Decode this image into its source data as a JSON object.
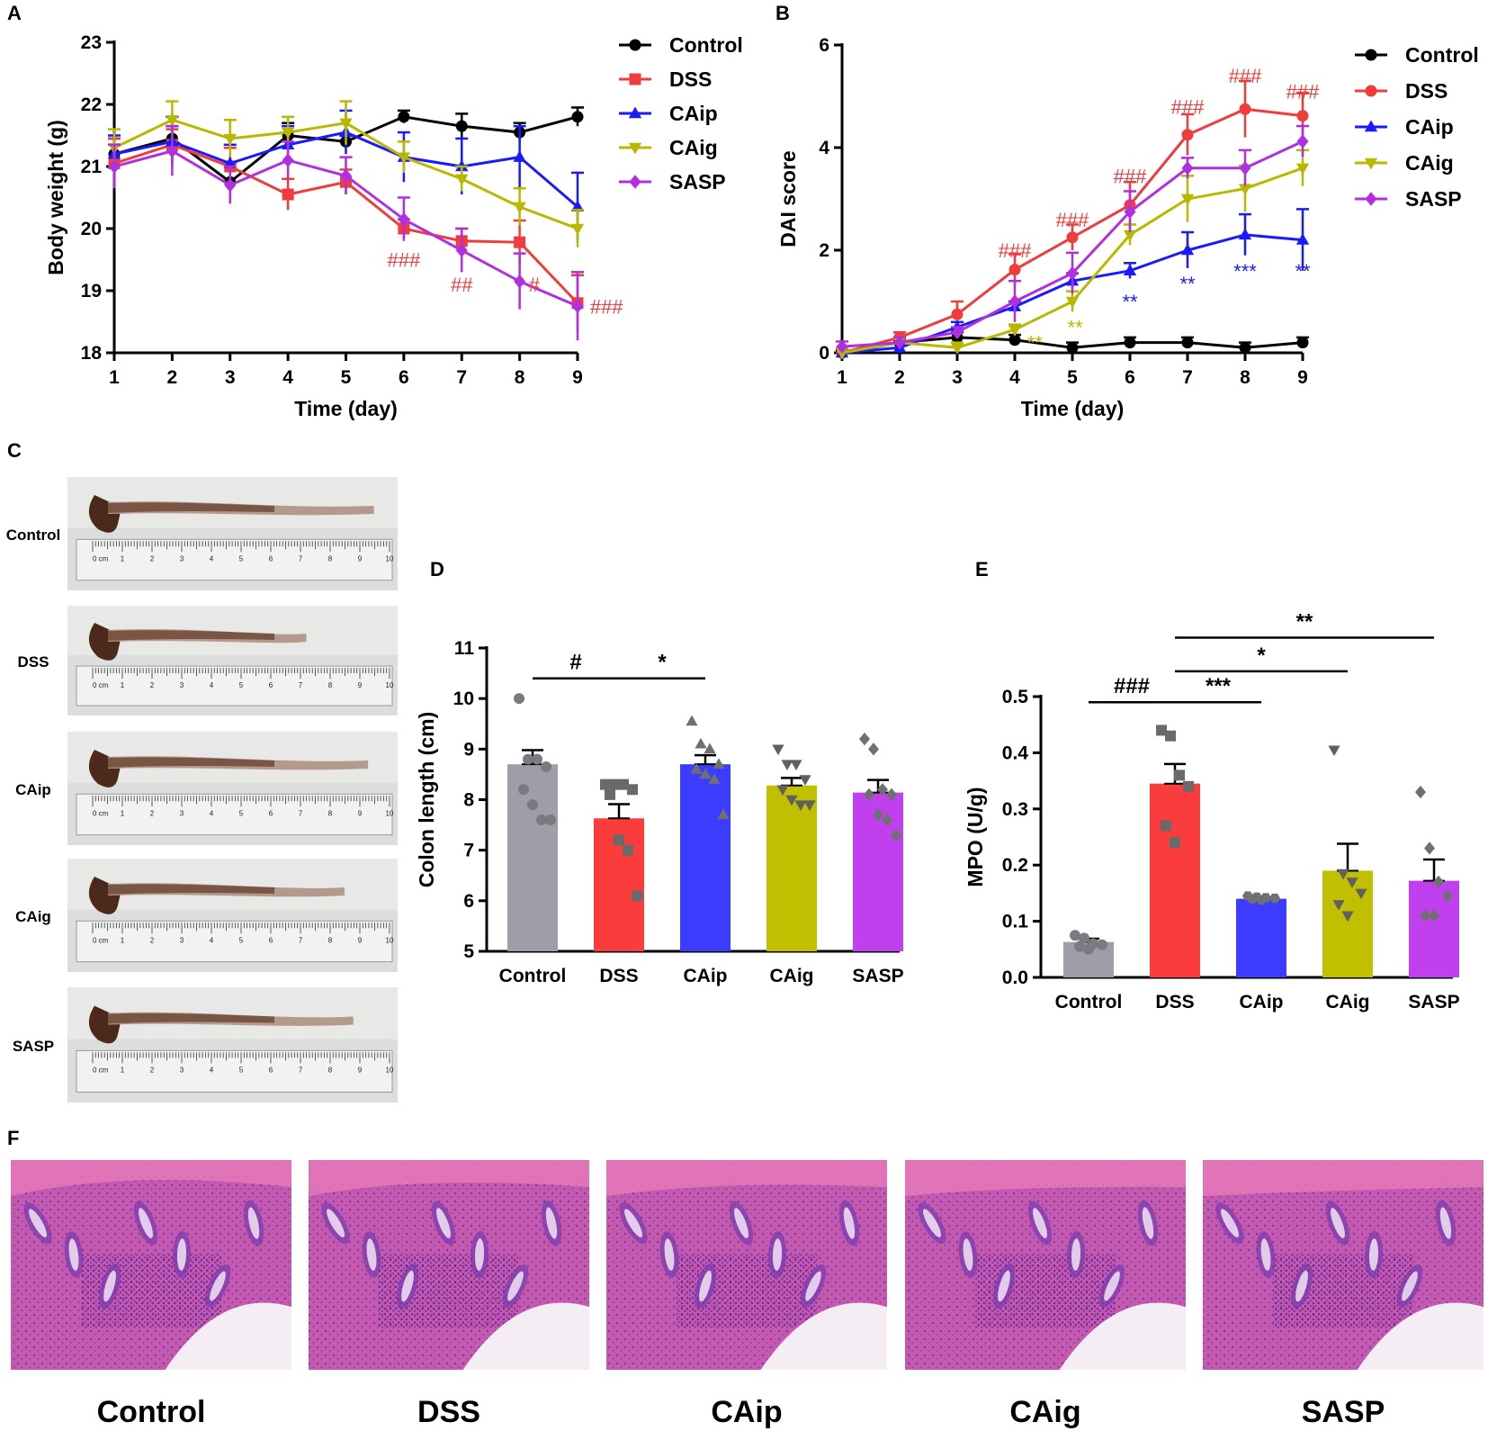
{
  "colors": {
    "Control": "#000000",
    "DSS": "#f03c3c",
    "CAip": "#1a1aff",
    "CAig": "#b8b800",
    "SASP": "#b030e0",
    "bar_Control": "#9e9ea8",
    "bar_DSS": "#fa3c3c",
    "bar_CAip": "#3c3cff",
    "bar_CAig": "#c0c000",
    "bar_SASP": "#c040f0",
    "pt_Control": "#7a7a80",
    "pt_DSS": "#6a6a6a",
    "pt_CAip": "#707070",
    "pt_CAig": "#606060",
    "pt_SASP": "#707070",
    "sig_red": "#f03c3c",
    "sig_blue": "#1a1aff",
    "sig_olive": "#b8b800"
  },
  "panels": {
    "A": "A",
    "B": "B",
    "C": "C",
    "D": "D",
    "E": "E",
    "F": "F"
  },
  "groups": [
    "Control",
    "DSS",
    "CAip",
    "CAig",
    "SASP"
  ],
  "chart_data": [
    {
      "id": "A",
      "type": "line",
      "xlabel": "Time (day)",
      "ylabel": "Body weight (g)",
      "x": [
        1,
        2,
        3,
        4,
        5,
        6,
        7,
        8,
        9
      ],
      "ylim": [
        18,
        23
      ],
      "yticks": [
        18,
        19,
        20,
        21,
        22,
        23
      ],
      "legend": [
        "Control",
        "DSS",
        "CAip",
        "CAig",
        "SASP"
      ],
      "series": [
        {
          "name": "Control",
          "marker": "circle",
          "values": [
            21.2,
            21.45,
            20.75,
            21.5,
            21.4,
            21.8,
            21.65,
            21.55,
            21.8
          ],
          "err": [
            0.25,
            0.2,
            0.3,
            0.2,
            0.1,
            0.1,
            0.2,
            0.15,
            0.15
          ]
        },
        {
          "name": "DSS",
          "marker": "square",
          "values": [
            21.05,
            21.35,
            21.0,
            20.55,
            20.75,
            20.0,
            19.8,
            19.78,
            18.8
          ],
          "err": [
            0.4,
            0.25,
            0.3,
            0.25,
            0.2,
            0.15,
            0.2,
            0.35,
            0.45
          ]
        },
        {
          "name": "CAip",
          "marker": "triangle-up",
          "values": [
            21.2,
            21.4,
            21.05,
            21.35,
            21.55,
            21.15,
            21.0,
            21.15,
            20.35
          ],
          "err": [
            0.3,
            0.4,
            0.3,
            0.3,
            0.35,
            0.4,
            0.45,
            0.5,
            0.55
          ]
        },
        {
          "name": "CAig",
          "marker": "triangle-down",
          "values": [
            21.3,
            21.75,
            21.45,
            21.55,
            21.7,
            21.15,
            20.8,
            20.35,
            20.0
          ],
          "err": [
            0.3,
            0.3,
            0.3,
            0.25,
            0.35,
            0.25,
            0.2,
            0.3,
            0.3
          ]
        },
        {
          "name": "SASP",
          "marker": "diamond",
          "values": [
            21.0,
            21.25,
            20.7,
            21.1,
            20.85,
            20.15,
            19.65,
            19.15,
            18.75
          ],
          "err": [
            0.35,
            0.4,
            0.3,
            0.3,
            0.3,
            0.35,
            0.35,
            0.45,
            0.55
          ]
        }
      ],
      "annotations": [
        {
          "text": "###",
          "x": 6,
          "y": 19.5,
          "color": "red"
        },
        {
          "text": "##",
          "x": 7,
          "y": 19.1,
          "color": "red"
        },
        {
          "text": "#",
          "x": 8.25,
          "y": 19.1,
          "color": "red"
        },
        {
          "text": "###",
          "x": 9.5,
          "y": 18.75,
          "color": "red"
        }
      ]
    },
    {
      "id": "B",
      "type": "line",
      "xlabel": "Time (day)",
      "ylabel": "DAI score",
      "x": [
        1,
        2,
        3,
        4,
        5,
        6,
        7,
        8,
        9
      ],
      "ylim": [
        0,
        6
      ],
      "yticks": [
        0,
        2,
        4,
        6
      ],
      "legend": [
        "Control",
        "DSS",
        "CAip",
        "CAig",
        "SASP"
      ],
      "series": [
        {
          "name": "Control",
          "marker": "circle",
          "values": [
            0.0,
            0.2,
            0.3,
            0.25,
            0.1,
            0.2,
            0.2,
            0.1,
            0.2
          ],
          "err": [
            0.05,
            0.05,
            0.1,
            0.1,
            0.1,
            0.1,
            0.1,
            0.1,
            0.1
          ]
        },
        {
          "name": "DSS",
          "marker": "circle",
          "values": [
            0.0,
            0.3,
            0.75,
            1.62,
            2.25,
            2.88,
            4.25,
            4.75,
            4.62
          ],
          "err": [
            0.1,
            0.1,
            0.25,
            0.3,
            0.25,
            0.45,
            0.4,
            0.55,
            0.45
          ]
        },
        {
          "name": "CAip",
          "marker": "triangle-up",
          "values": [
            0.0,
            0.1,
            0.5,
            0.9,
            1.4,
            1.6,
            2.0,
            2.3,
            2.2
          ],
          "err": [
            0.1,
            0.1,
            0.1,
            0.1,
            0.15,
            0.15,
            0.35,
            0.4,
            0.6
          ]
        },
        {
          "name": "CAig",
          "marker": "triangle-down",
          "values": [
            0.0,
            0.2,
            0.1,
            0.45,
            1.0,
            2.3,
            3.0,
            3.2,
            3.6
          ],
          "err": [
            0.1,
            0.1,
            0.1,
            0.1,
            0.2,
            0.2,
            0.45,
            0.45,
            0.35
          ]
        },
        {
          "name": "SASP",
          "marker": "diamond",
          "values": [
            0.12,
            0.2,
            0.4,
            1.0,
            1.55,
            2.75,
            3.6,
            3.6,
            4.12
          ],
          "err": [
            0.1,
            0.1,
            0.1,
            0.4,
            0.4,
            0.4,
            0.2,
            0.35,
            0.3
          ]
        }
      ],
      "annotations": [
        {
          "text": "###",
          "x": 4,
          "y": 2.0,
          "color": "red"
        },
        {
          "text": "###",
          "x": 5,
          "y": 2.6,
          "color": "red"
        },
        {
          "text": "###",
          "x": 6,
          "y": 3.45,
          "color": "red"
        },
        {
          "text": "###",
          "x": 7,
          "y": 4.8,
          "color": "red"
        },
        {
          "text": "###",
          "x": 8,
          "y": 5.4,
          "color": "red"
        },
        {
          "text": "###",
          "x": 9,
          "y": 5.1,
          "color": "red"
        },
        {
          "text": "**",
          "x": 4.35,
          "y": 0.2,
          "color": "olive"
        },
        {
          "text": "**",
          "x": 5.05,
          "y": 0.5,
          "color": "olive"
        },
        {
          "text": "**",
          "x": 6,
          "y": 1.0,
          "color": "blue"
        },
        {
          "text": "**",
          "x": 7,
          "y": 1.35,
          "color": "blue"
        },
        {
          "text": "***",
          "x": 8,
          "y": 1.6,
          "color": "blue"
        },
        {
          "text": "**",
          "x": 9,
          "y": 1.6,
          "color": "blue"
        }
      ]
    },
    {
      "id": "D",
      "type": "bar",
      "xlabel": "",
      "ylabel": "Colon length (cm)",
      "categories": [
        "Control",
        "DSS",
        "CAip",
        "CAig",
        "SASP"
      ],
      "values": [
        8.7,
        7.63,
        8.7,
        8.28,
        8.14
      ],
      "err": [
        0.28,
        0.28,
        0.18,
        0.15,
        0.25
      ],
      "ylim": [
        5,
        11
      ],
      "yticks": [
        5,
        6,
        7,
        8,
        9,
        10,
        11
      ],
      "points": [
        [
          10.0,
          8.8,
          8.8,
          8.65,
          8.2,
          7.9,
          7.6,
          7.6
        ],
        [
          8.3,
          8.3,
          8.3,
          8.2,
          8.1,
          7.2,
          7.0,
          6.1
        ],
        [
          9.55,
          9.1,
          9.0,
          8.7,
          8.6,
          8.5,
          8.4,
          7.7
        ],
        [
          9.0,
          8.7,
          8.7,
          8.4,
          8.2,
          8.0,
          7.9,
          7.9
        ],
        [
          9.2,
          9.0,
          8.2,
          8.1,
          8.1,
          7.7,
          7.6,
          7.3
        ]
      ],
      "markers": [
        "circle",
        "square",
        "triangle-up",
        "triangle-down",
        "diamond"
      ],
      "significance": [
        {
          "from": 0,
          "to": 1,
          "y": 10.4,
          "text": "#"
        },
        {
          "from": 1,
          "to": 2,
          "y": 10.4,
          "text": "*"
        }
      ]
    },
    {
      "id": "E",
      "type": "bar",
      "xlabel": "",
      "ylabel": "MPO (U/g)",
      "categories": [
        "Control",
        "DSS",
        "CAip",
        "CAig",
        "SASP"
      ],
      "values": [
        0.063,
        0.345,
        0.14,
        0.19,
        0.172
      ],
      "err": [
        0.006,
        0.035,
        0.003,
        0.048,
        0.038
      ],
      "ylim": [
        0.0,
        0.5
      ],
      "yticks": [
        0.0,
        0.1,
        0.2,
        0.3,
        0.4,
        0.5
      ],
      "points": [
        [
          0.075,
          0.07,
          0.06,
          0.058,
          0.055,
          0.05
        ],
        [
          0.44,
          0.43,
          0.36,
          0.34,
          0.27,
          0.24
        ],
        [
          0.145,
          0.143,
          0.142,
          0.141,
          0.14,
          0.138
        ],
        [
          0.405,
          0.185,
          0.17,
          0.15,
          0.13,
          0.11
        ],
        [
          0.33,
          0.23,
          0.17,
          0.145,
          0.11,
          0.11
        ]
      ],
      "markers": [
        "circle",
        "square",
        "hexagon",
        "triangle-down",
        "diamond"
      ],
      "significance": [
        {
          "from": 0,
          "to": 1,
          "y": 0.49,
          "text": "###"
        },
        {
          "from": 1,
          "to": 2,
          "y": 0.49,
          "text": "***"
        },
        {
          "from": 1,
          "to": 3,
          "y": 0.545,
          "text": "*"
        },
        {
          "from": 1,
          "to": 4,
          "y": 0.605,
          "text": "**"
        }
      ]
    }
  ],
  "photos_C": {
    "labels": [
      "Control",
      "DSS",
      "CAip",
      "CAig",
      "SASP"
    ],
    "ruler_unit": "0 cm",
    "ruler_numbers": [
      "1",
      "2",
      "3",
      "4",
      "5",
      "6",
      "7",
      "8",
      "9",
      "10"
    ]
  },
  "histology_F": {
    "labels": [
      "Control",
      "DSS",
      "CAip",
      "CAig",
      "SASP"
    ]
  }
}
